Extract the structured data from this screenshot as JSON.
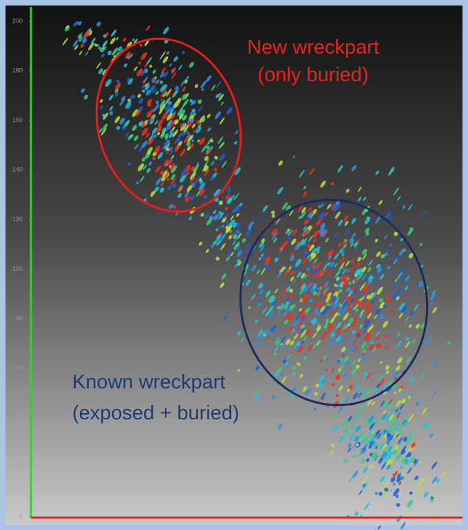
{
  "axis": {
    "ylim": [
      0,
      200
    ],
    "yticks": [
      0,
      20,
      40,
      60,
      80,
      100,
      120,
      140,
      160,
      180,
      200
    ]
  },
  "annotations": [
    {
      "lines": [
        "New wreckpart",
        "(only buried)"
      ],
      "color": "#e8231f"
    },
    {
      "lines": [
        "Known wreckpart",
        "(exposed  + buried)"
      ],
      "color": "#1f3a73"
    }
  ]
}
